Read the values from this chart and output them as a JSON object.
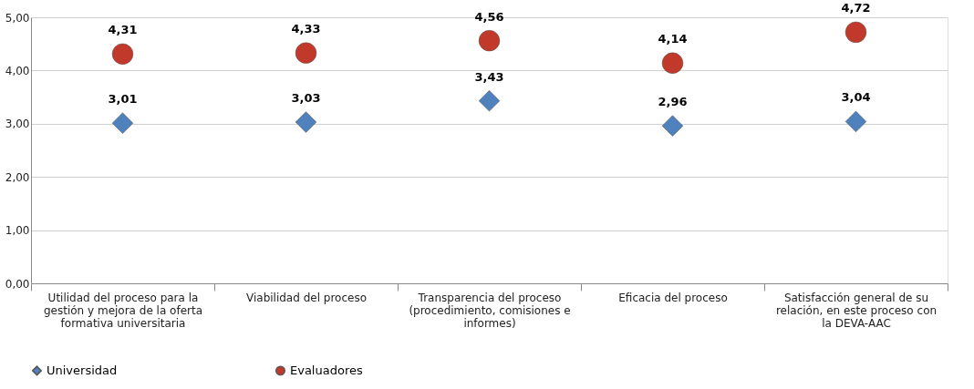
{
  "chart_data": {
    "type": "scatter",
    "categories": [
      "Utilidad del proceso para la gestión y mejora de la oferta formativa universitaria",
      "Viabilidad del proceso",
      "Transparencia del proceso (procedimiento, comisiones e informes)",
      "Eficacia del proceso",
      "Satisfacción general de su relación, en este proceso con la DEVA-AAC"
    ],
    "series": [
      {
        "name": "Universidad",
        "color": "#4f81bd",
        "marker": "diamond",
        "values": [
          3.01,
          3.03,
          3.43,
          2.96,
          3.04
        ],
        "value_labels": [
          "3,01",
          "3,03",
          "3,43",
          "2,96",
          "3,04"
        ]
      },
      {
        "name": "Evaluadores",
        "color": "#c0392b",
        "marker": "circle",
        "values": [
          4.31,
          4.33,
          4.56,
          4.14,
          4.72
        ],
        "value_labels": [
          "4,31",
          "4,33",
          "4,56",
          "4,14",
          "4,72"
        ]
      }
    ],
    "ylim": [
      0,
      5
    ],
    "yticks": [
      {
        "value": 0,
        "label": "0,00"
      },
      {
        "value": 1,
        "label": "1,00"
      },
      {
        "value": 2,
        "label": "2,00"
      },
      {
        "value": 3,
        "label": "3,00"
      },
      {
        "value": 4,
        "label": "4,00"
      },
      {
        "value": 5,
        "label": "5,00"
      }
    ],
    "grid": "y",
    "legend": "bottom"
  }
}
